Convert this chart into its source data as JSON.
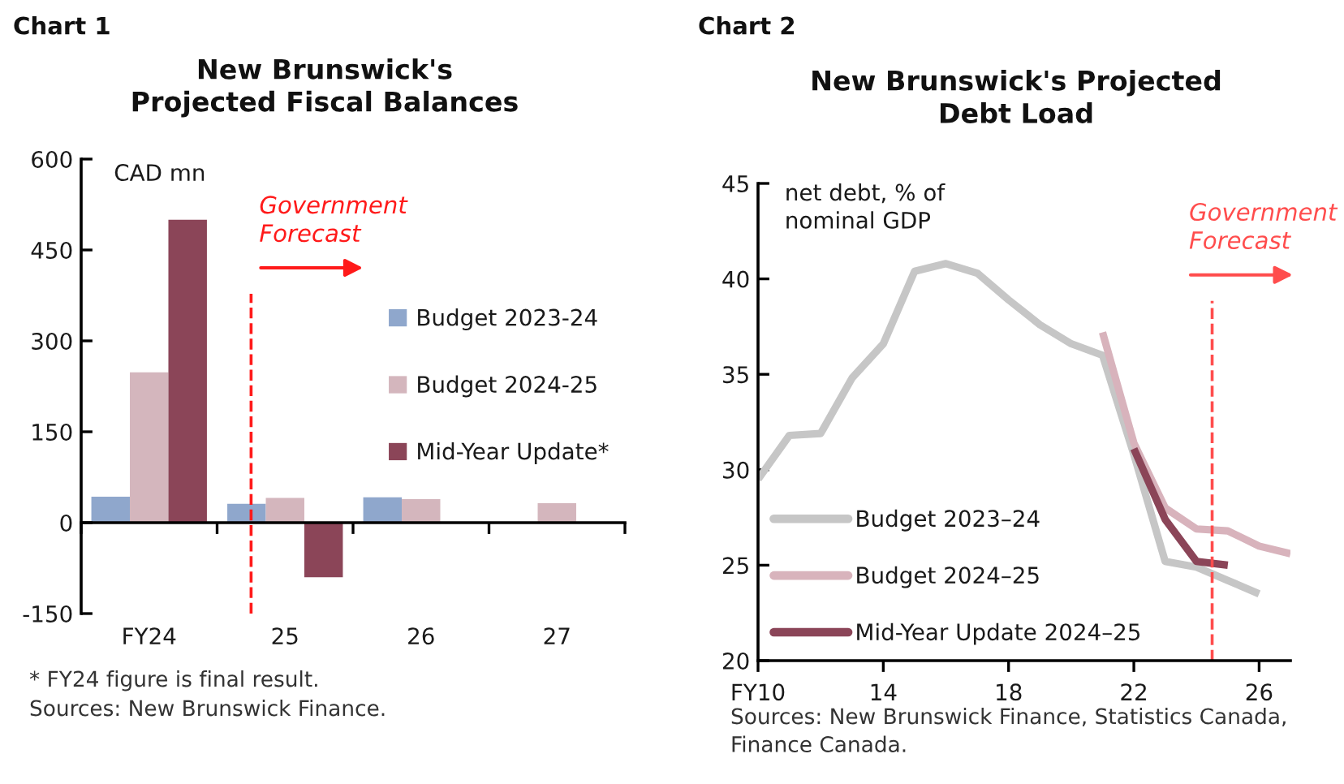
{
  "chart_data": [
    {
      "type": "bar",
      "title": "Chart 1",
      "subtitle": "New Brunswick's\nProjected Fiscal Balances",
      "ylabel": "CAD mn",
      "x": [
        24,
        25,
        26,
        27
      ],
      "series": [
        {
          "name": "Budget 2023-24",
          "color": "#8fa7cc",
          "values": [
            43,
            31,
            42,
            null
          ]
        },
        {
          "name": "Budget 2024-25",
          "color": "#d4b6bd",
          "values": [
            248,
            41,
            39,
            32
          ]
        },
        {
          "name": "Mid-Year Update*",
          "color": "#8b4558",
          "values": [
            500,
            -90,
            null,
            null
          ]
        }
      ],
      "xlim": [
        23.5,
        27.5
      ],
      "xticks": [
        {
          "value": 23.5,
          "label": null
        },
        {
          "value": 24,
          "label": "FY24"
        },
        {
          "value": 24.5,
          "label": null
        },
        25,
        {
          "value": 25.5,
          "label": null
        },
        26,
        {
          "value": 26.5,
          "label": null
        },
        27,
        {
          "value": 27.5,
          "label": null
        }
      ],
      "ylim": [
        -150,
        600
      ],
      "yticks": [
        -150,
        0,
        150,
        300,
        450,
        600
      ],
      "legend": "right",
      "ref_lines": [
        {
          "axis": "x",
          "value": 24.75,
          "label": "Government\nForecast",
          "color": "#ff1a1a",
          "line_style": "dashed"
        }
      ],
      "annotations": [
        "* FY24 figure is final result.",
        "Sources: New Brunswick Finance."
      ]
    },
    {
      "type": "line",
      "title": "Chart 2",
      "subtitle": "New Brunswick's Projected\nDebt Load",
      "ylabel": "net debt, % of\nnominal GDP",
      "series": [
        {
          "name": "Budget 2023–24",
          "color": "#c6c6c6",
          "x": [
            10,
            11,
            12,
            13,
            14,
            15,
            16,
            17,
            18,
            19,
            20,
            21,
            22,
            23,
            24,
            25,
            26
          ],
          "values": [
            29.5,
            31.8,
            31.9,
            34.8,
            36.6,
            40.4,
            40.8,
            40.3,
            38.9,
            37.6,
            36.6,
            36.0,
            30.8,
            25.2,
            24.9,
            24.2,
            23.5
          ]
        },
        {
          "name": "Budget 2024–25",
          "color": "#d8b3bc",
          "x": [
            21,
            22,
            23,
            24,
            25,
            26,
            27
          ],
          "values": [
            37.2,
            31.4,
            28.0,
            26.9,
            26.8,
            26.0,
            25.6
          ]
        },
        {
          "name": "Mid-Year Update 2024–25",
          "color": "#8b4558",
          "x": [
            22,
            23,
            24,
            25
          ],
          "values": [
            31.1,
            27.4,
            25.2,
            25.0
          ]
        }
      ],
      "xlim": [
        10,
        27
      ],
      "xticks": [
        {
          "value": 10,
          "label": "FY10"
        },
        14,
        18,
        22,
        26
      ],
      "ylim": [
        20,
        45
      ],
      "yticks": [
        20,
        25,
        30,
        35,
        40,
        45
      ],
      "legend": "bottom left",
      "ref_lines": [
        {
          "axis": "x",
          "value": 24.5,
          "label": "Government\nForecast",
          "color": "#ff4d4d",
          "line_style": "dashed"
        }
      ],
      "annotations": [
        "Sources: New Brunswick Finance, Statistics Canada, Finance Canada."
      ]
    }
  ]
}
